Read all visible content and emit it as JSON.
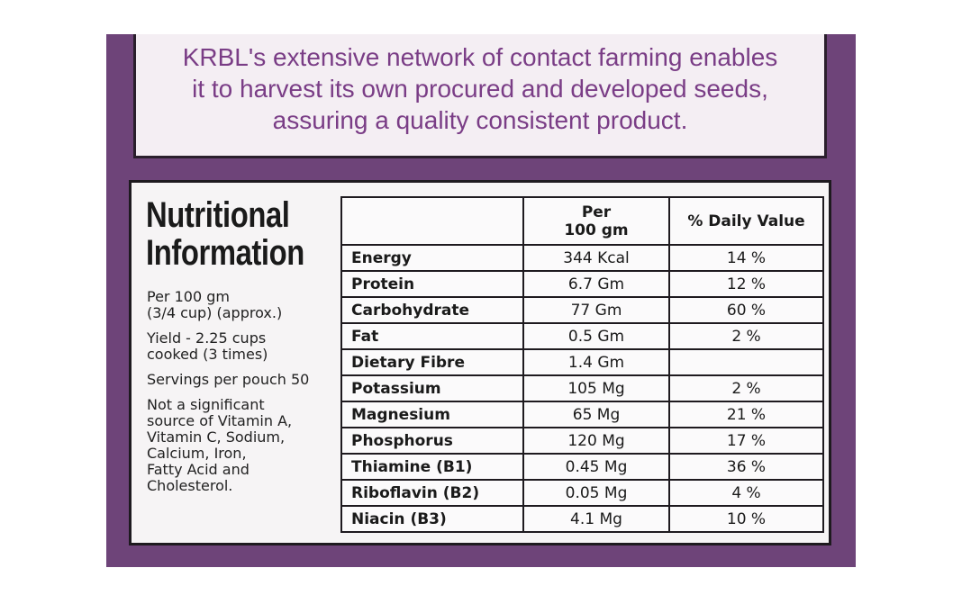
{
  "top_text": [
    "KRBL's extensive network of contact farming enables",
    "it to harvest its own procured and developed seeds,",
    "assuring a quality consistent product."
  ],
  "title": [
    "Nutritional",
    "Information"
  ],
  "notes": [
    [
      "Per 100 gm",
      "(3/4 cup) (approx.)"
    ],
    [
      "Yield - 2.25 cups",
      "cooked (3 times)"
    ],
    [
      "Servings per pouch 50"
    ],
    [
      "Not a significant",
      "source of Vitamin A,",
      "Vitamin C, Sodium,",
      "Calcium, Iron,",
      "Fatty Acid and",
      "Cholesterol."
    ]
  ],
  "table": {
    "header": [
      [
        "Per",
        "100 gm"
      ],
      [
        "% Daily Value"
      ]
    ],
    "rows": [
      [
        "Energy",
        "344 Kcal",
        "14 %"
      ],
      [
        "Protein",
        "6.7 Gm",
        "12 %"
      ],
      [
        "Carbohydrate",
        "77 Gm",
        "60 %"
      ],
      [
        "Fat",
        "0.5 Gm",
        "2 %"
      ],
      [
        "Dietary Fibre",
        "1.4 Gm",
        null
      ],
      [
        "Potassium",
        "105 Mg",
        "2 %"
      ],
      [
        "Magnesium",
        "65 Mg",
        "21 %"
      ],
      [
        "Phosphorus",
        "120 Mg",
        "17 %"
      ],
      [
        "Thiamine (B1)",
        "0.45 Mg",
        "36 %"
      ],
      [
        "Riboflavin (B2)",
        "0.05 Mg",
        "4 %"
      ],
      [
        "Niacin (B3)",
        "4.1 Mg",
        "10 %"
      ]
    ]
  }
}
